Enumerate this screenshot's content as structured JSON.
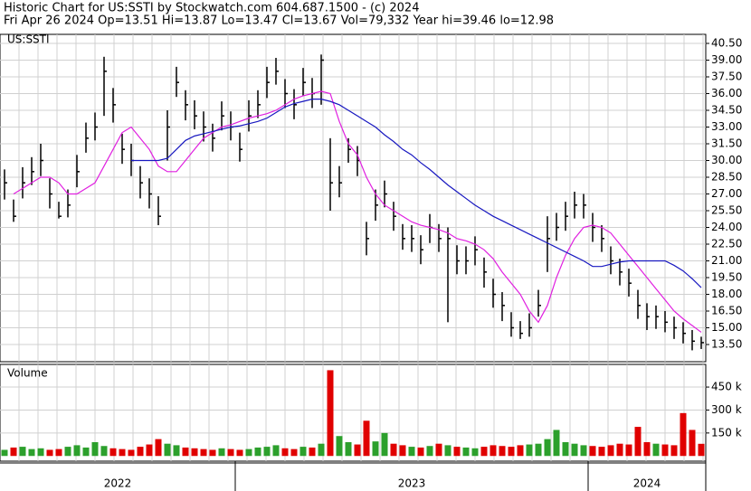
{
  "chart_data": {
    "type": "ohlc",
    "title": "Historic Chart for US:SSTI by Stockwatch.com 604.687.1500 - (c) 2024",
    "subtitle": "Fri Apr 26 2024  Op=13.51  Hi=13.87  Lo=13.47  Cl=13.67  Vol=79,332  Year hi=39.46  lo=12.98",
    "symbol": "US:SSTI",
    "xlim": [
      0,
      78
    ],
    "high": [
      29.2,
      26.5,
      29.4,
      30.3,
      31.5,
      28.4,
      26.3,
      27.4,
      30.5,
      33.4,
      34.3,
      39.3,
      36.5,
      32.4,
      31.5,
      29.5,
      28.4,
      26.8,
      34.5,
      38.4,
      36.3,
      35.4,
      34.4,
      33.3,
      35.3,
      34.4,
      32.5,
      35.4,
      36.3,
      38.4,
      39.2,
      37.3,
      36.4,
      38.3,
      37.4,
      39.5,
      32.0,
      29.5,
      32.0,
      31.3,
      24.5,
      27.4,
      28.2,
      26.3,
      24.3,
      24.2,
      23.3,
      25.2,
      24.3,
      24.0,
      22.4,
      22.3,
      23.2,
      21.3,
      19.4,
      18.2,
      16.4,
      15.6,
      16.3,
      18.4,
      25.0,
      25.3,
      26.3,
      27.2,
      27.0,
      25.3,
      24.2,
      22.3,
      21.2,
      20.3,
      18.4,
      17.2,
      17.0,
      16.5,
      16.0,
      15.5,
      14.8,
      14.2
    ],
    "low": [
      26.5,
      24.5,
      26.6,
      27.8,
      28.6,
      25.7,
      24.8,
      24.9,
      27.6,
      30.7,
      31.8,
      34.0,
      33.4,
      29.7,
      28.6,
      26.6,
      25.7,
      24.2,
      30.0,
      35.7,
      33.6,
      32.8,
      31.7,
      30.8,
      32.7,
      31.8,
      29.9,
      32.6,
      33.8,
      35.6,
      36.8,
      34.7,
      33.7,
      35.8,
      34.7,
      35.0,
      25.5,
      26.7,
      29.8,
      28.6,
      21.5,
      24.6,
      25.8,
      23.7,
      22.0,
      21.8,
      20.7,
      22.6,
      21.8,
      15.5,
      19.8,
      19.8,
      20.6,
      18.6,
      16.8,
      15.6,
      14.2,
      14.0,
      14.2,
      16.0,
      20.0,
      22.8,
      23.7,
      24.8,
      24.8,
      22.7,
      21.8,
      19.8,
      18.8,
      17.8,
      15.8,
      14.8,
      14.9,
      14.6,
      14.0,
      13.6,
      12.98,
      13.1
    ],
    "close": [
      28,
      25,
      28,
      29,
      30,
      27,
      25,
      26,
      29,
      32,
      33,
      38,
      35,
      31,
      30,
      28,
      27,
      25,
      33,
      37,
      35,
      34,
      33,
      32,
      34,
      33,
      31,
      34,
      35,
      37,
      38,
      36,
      35,
      37,
      36,
      39,
      28,
      28,
      31,
      30,
      23,
      26,
      27,
      25,
      23,
      23,
      22,
      24,
      23,
      23,
      21,
      21,
      22,
      20,
      18,
      17,
      15,
      14.5,
      15,
      17,
      23,
      24,
      25,
      26,
      26,
      24,
      23,
      21,
      20,
      19,
      17,
      16,
      16,
      15.5,
      15,
      14.5,
      13.8,
      13.67
    ],
    "bar_color": "#000000",
    "series": [
      {
        "color": "#e020e0",
        "values": [
          null,
          27,
          27.5,
          28,
          28.5,
          28.5,
          28,
          27,
          27,
          27.5,
          28,
          29.5,
          31,
          32.5,
          33,
          32,
          31,
          29.5,
          29,
          29,
          30,
          31,
          32,
          32.5,
          33,
          33.2,
          33.5,
          33.8,
          34,
          34.2,
          34.5,
          35,
          35.5,
          35.8,
          36,
          36.2,
          36,
          33.5,
          31.5,
          30.5,
          28.5,
          27,
          26,
          25.5,
          25,
          24.5,
          24.2,
          24,
          23.8,
          23.5,
          23,
          22.8,
          22.5,
          22,
          21.2,
          20,
          19,
          18,
          16.5,
          15.5,
          17,
          19.5,
          21.5,
          23,
          24,
          24.2,
          24,
          23.5,
          22.5,
          21.5,
          20.5,
          19.5,
          18.5,
          17.5,
          16.5,
          15.8,
          15.2,
          14.6
        ]
      },
      {
        "color": "#1818c0",
        "values": [
          null,
          null,
          null,
          null,
          null,
          null,
          null,
          null,
          null,
          null,
          null,
          null,
          null,
          null,
          30,
          30,
          30,
          30,
          30.2,
          31,
          31.8,
          32.2,
          32.4,
          32.6,
          32.8,
          33,
          33.1,
          33.3,
          33.5,
          33.8,
          34.3,
          34.8,
          35.1,
          35.3,
          35.5,
          35.5,
          35.3,
          35,
          34.5,
          34,
          33.5,
          33,
          32.3,
          31.7,
          31,
          30.5,
          29.8,
          29.2,
          28.5,
          27.8,
          27.2,
          26.6,
          26,
          25.5,
          25,
          24.6,
          24.2,
          23.8,
          23.4,
          23,
          22.6,
          22.2,
          21.8,
          21.4,
          21,
          20.5,
          20.5,
          20.7,
          20.9,
          21,
          21,
          21,
          21,
          21,
          20.6,
          20.1,
          19.4,
          18.6
        ]
      }
    ],
    "ylim": [
      11.96,
      41.31
    ],
    "yticks": [
      {
        "value": 13.5,
        "label": "13.50"
      },
      {
        "value": 15,
        "label": "15.00"
      },
      {
        "value": 16.5,
        "label": "16.50"
      },
      {
        "value": 18,
        "label": "18.00"
      },
      {
        "value": 19.5,
        "label": "19.50"
      },
      {
        "value": 21,
        "label": "21.00"
      },
      {
        "value": 22.5,
        "label": "22.50"
      },
      {
        "value": 24,
        "label": "24.00"
      },
      {
        "value": 25.5,
        "label": "25.50"
      },
      {
        "value": 27,
        "label": "27.00"
      },
      {
        "value": 28.5,
        "label": "28.50"
      },
      {
        "value": 30,
        "label": "30.00"
      },
      {
        "value": 31.5,
        "label": "31.50"
      },
      {
        "value": 33,
        "label": "33.00"
      },
      {
        "value": 34.5,
        "label": "34.50"
      },
      {
        "value": 36,
        "label": "36.00"
      },
      {
        "value": 37.5,
        "label": "37.50"
      },
      {
        "value": 39,
        "label": "39.00"
      },
      {
        "value": 40.5,
        "label": "40.50"
      }
    ],
    "grid": true,
    "volume": {
      "label": "Volume",
      "values": [
        40000,
        55000,
        60000,
        45000,
        50000,
        40000,
        45000,
        60000,
        70000,
        55000,
        90000,
        65000,
        50000,
        45000,
        40000,
        60000,
        75000,
        110000,
        80000,
        70000,
        55000,
        50000,
        45000,
        40000,
        50000,
        45000,
        40000,
        45000,
        55000,
        60000,
        70000,
        50000,
        45000,
        60000,
        55000,
        80000,
        560000,
        130000,
        90000,
        75000,
        230000,
        95000,
        150000,
        80000,
        70000,
        60000,
        55000,
        65000,
        80000,
        70000,
        60000,
        55000,
        50000,
        60000,
        70000,
        65000,
        60000,
        70000,
        75000,
        80000,
        110000,
        170000,
        90000,
        80000,
        70000,
        65000,
        60000,
        70000,
        80000,
        75000,
        190000,
        90000,
        80000,
        75000,
        70000,
        280000,
        170000,
        79332
      ],
      "ylim": [
        -34000,
        598000
      ],
      "yticks": [
        {
          "value": 150000,
          "label": "150 k"
        },
        {
          "value": 300000,
          "label": "300 k"
        },
        {
          "value": 450000,
          "label": "450 k"
        }
      ],
      "up_color": "#2ca02c",
      "down_color": "#e00000"
    },
    "year_labels": [
      "2022",
      "2023",
      "2024"
    ],
    "year_starts": [
      0,
      26,
      65
    ]
  }
}
